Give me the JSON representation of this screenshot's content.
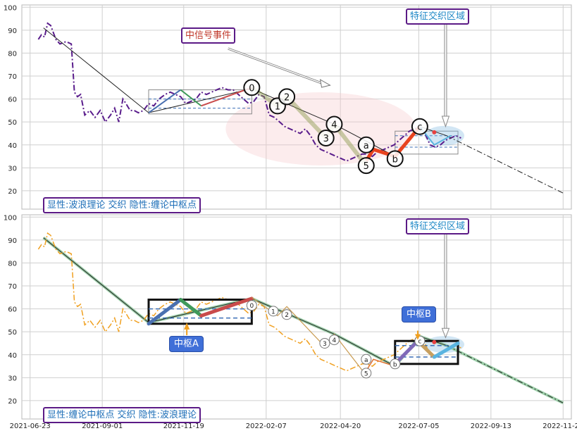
{
  "chart_data": {
    "type": "line",
    "yticks": [
      10,
      20,
      30,
      40,
      50,
      60,
      70,
      80,
      90,
      100
    ],
    "ylim": [
      12,
      101
    ],
    "x_dates": [
      "2021-06-23",
      "2021-09-01",
      "2021-11-19",
      "2022-02-07",
      "2022-04-20",
      "2022-07-05",
      "2022-09-13",
      "2022-11-22"
    ],
    "grid": true,
    "panels": [
      {
        "legend_text": "显性:波浪理论 交织 隐性:缠论中枢点",
        "annotations": [
          {
            "id": "signal-event",
            "text": "中信号事件"
          },
          {
            "id": "feature-region",
            "text": "特征交织区域"
          }
        ],
        "wave_labels": [
          "0",
          "1",
          "2",
          "3",
          "4",
          "5",
          "a",
          "b",
          "c"
        ]
      },
      {
        "legend_text": "显性:缠论中枢点 交织 隐性:波浪理论",
        "annotations": [
          {
            "id": "feature-region",
            "text": "特征交织区域"
          },
          {
            "id": "pivot-a",
            "text": "中枢A"
          },
          {
            "id": "pivot-b",
            "text": "中枢B"
          }
        ],
        "wave_labels": [
          "0",
          "1",
          "2",
          "3",
          "4",
          "5",
          "a",
          "b",
          "c"
        ]
      }
    ],
    "price_series": {
      "x": [
        "2021-07-01",
        "2021-07-04",
        "2021-07-07",
        "2021-07-10",
        "2021-07-13",
        "2021-07-18",
        "2021-07-22",
        "2021-07-28",
        "2021-08-02",
        "2021-08-05",
        "2021-08-08",
        "2021-08-11",
        "2021-08-15",
        "2021-08-20",
        "2021-08-25",
        "2021-08-30",
        "2021-09-04",
        "2021-09-09",
        "2021-09-13",
        "2021-09-17",
        "2021-09-21",
        "2021-09-24",
        "2021-09-28",
        "2021-10-02",
        "2021-10-06",
        "2021-10-11",
        "2021-10-16",
        "2021-10-21",
        "2021-10-26",
        "2021-11-01",
        "2021-11-06",
        "2021-11-11",
        "2021-11-16",
        "2021-11-21",
        "2021-11-26",
        "2021-12-01",
        "2021-12-06",
        "2021-12-11",
        "2021-12-16",
        "2021-12-21",
        "2021-12-26",
        "2022-01-01",
        "2022-01-06",
        "2022-01-11",
        "2022-01-16",
        "2022-01-21",
        "2022-01-26",
        "2022-01-31",
        "2022-02-05",
        "2022-02-10",
        "2022-02-15",
        "2022-02-20",
        "2022-02-25",
        "2022-03-02",
        "2022-03-07",
        "2022-03-12",
        "2022-03-17",
        "2022-03-22",
        "2022-03-27",
        "2022-04-01",
        "2022-04-06",
        "2022-04-11",
        "2022-04-16",
        "2022-04-21",
        "2022-04-26",
        "2022-05-01",
        "2022-05-06",
        "2022-05-11",
        "2022-05-16",
        "2022-05-21",
        "2022-05-26",
        "2022-06-01",
        "2022-06-06",
        "2022-06-11",
        "2022-06-16",
        "2022-06-21",
        "2022-06-26",
        "2022-07-01",
        "2022-07-06",
        "2022-07-11",
        "2022-07-16",
        "2022-07-21",
        "2022-07-26",
        "2022-07-31",
        "2022-08-05",
        "2022-08-10",
        "2022-08-15"
      ],
      "y": [
        86,
        88,
        87,
        93,
        92,
        86,
        84,
        85,
        84,
        63,
        61,
        62,
        53,
        55,
        52,
        55,
        50,
        53,
        56,
        50,
        60,
        58,
        55,
        55,
        54,
        55,
        58,
        57,
        60,
        62,
        63,
        62,
        61,
        58,
        59,
        60,
        63,
        62,
        63,
        64,
        65,
        64,
        64,
        62,
        60,
        58,
        59,
        62,
        61,
        53,
        52,
        50,
        48,
        47,
        46,
        45,
        47,
        44,
        40,
        38,
        37,
        36,
        35,
        34,
        33,
        34,
        35,
        36,
        36,
        35,
        37,
        38,
        39,
        40,
        42,
        44,
        46,
        47,
        48,
        45,
        40,
        39,
        40,
        42,
        43,
        44,
        43
      ]
    },
    "wave_points": [
      {
        "label": "0",
        "x": "2022-01-24",
        "y": 65
      },
      {
        "label": "1",
        "x": "2022-02-18",
        "y": 57
      },
      {
        "label": "2",
        "x": "2022-02-27",
        "y": 61
      },
      {
        "label": "3",
        "x": "2022-04-06",
        "y": 43
      },
      {
        "label": "4",
        "x": "2022-04-14",
        "y": 49
      },
      {
        "label": "5",
        "x": "2022-05-15",
        "y": 31
      },
      {
        "label": "a",
        "x": "2022-05-15",
        "y": 40
      },
      {
        "label": "b",
        "x": "2022-06-12",
        "y": 34
      },
      {
        "label": "c",
        "x": "2022-07-06",
        "y": 48
      }
    ],
    "trend_line": {
      "x": [
        "2021-07-06",
        "2021-10-16",
        "2022-01-24",
        "2022-04-14",
        "2022-06-12",
        "2022-07-06",
        "2022-08-01",
        "2022-11-22"
      ],
      "y": [
        91,
        54,
        64.5,
        49,
        35,
        48,
        44,
        19
      ]
    },
    "pivots": [
      {
        "name": "中枢A",
        "x_start": "2021-10-16",
        "x_end": "2022-01-24",
        "top": 64,
        "bottom": 53.5,
        "inner_top": 60,
        "inner_bottom": 56
      },
      {
        "name": "中枢B",
        "x_start": "2022-06-12",
        "x_end": "2022-08-12",
        "top": 46,
        "bottom": 36,
        "inner_top": 44,
        "inner_bottom": 39
      }
    ]
  }
}
